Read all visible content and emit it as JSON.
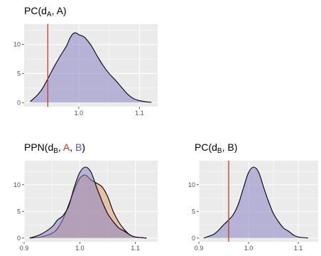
{
  "chart_data": [
    {
      "type": "area",
      "title": "PC(d_A, A)",
      "title_parts": {
        "prefix": "PC(d",
        "sub": "A",
        "rest": ", A)"
      },
      "xlim": [
        0.91,
        1.13
      ],
      "ylim": [
        -0.7,
        13.5
      ],
      "x_ticks": [
        {
          "value": 1.0,
          "label": "1.0"
        },
        {
          "value": 1.1,
          "label": "1.1"
        }
      ],
      "y_ticks": [
        {
          "value": 0,
          "label": "0"
        },
        {
          "value": 5,
          "label": "5"
        },
        {
          "value": 10,
          "label": "10"
        }
      ],
      "grid": true,
      "vline": {
        "x": 0.949,
        "color": "#c0392b"
      },
      "series": [
        {
          "color": "#8a84c4",
          "x": [
            0.92,
            0.93,
            0.94,
            0.95,
            0.96,
            0.97,
            0.98,
            0.985,
            0.99,
            0.995,
            1.0,
            1.005,
            1.01,
            1.02,
            1.03,
            1.04,
            1.05,
            1.06,
            1.07,
            1.08,
            1.09,
            1.1,
            1.11,
            1.12
          ],
          "y": [
            0.2,
            1.1,
            2.4,
            4.3,
            6.3,
            8.1,
            9.8,
            11.0,
            11.8,
            12.0,
            11.7,
            11.5,
            11.2,
            9.9,
            8.1,
            6.4,
            5.0,
            3.9,
            2.7,
            1.5,
            0.7,
            0.35,
            0.15,
            0.05
          ]
        }
      ]
    },
    {
      "type": "area",
      "title": "PPN(d_B, A, B)",
      "title_parts": {
        "prefix": "PPN(d",
        "sub": "B",
        "sep1": ", ",
        "labelA": "A",
        "sep2": ", ",
        "labelB": "B",
        "close": ")"
      },
      "label_colors": {
        "A": "#c0392b",
        "B": "#5b57a6"
      },
      "xlim": [
        0.9,
        1.14
      ],
      "ylim": [
        -0.7,
        14.5
      ],
      "x_ticks": [
        {
          "value": 0.9,
          "label": "0.9"
        },
        {
          "value": 1.0,
          "label": "1.0"
        },
        {
          "value": 1.1,
          "label": "1.1"
        }
      ],
      "y_ticks": [
        {
          "value": 0,
          "label": "0"
        },
        {
          "value": 5,
          "label": "5"
        },
        {
          "value": 10,
          "label": "10"
        }
      ],
      "grid": true,
      "series": [
        {
          "color": "#e0a070",
          "x": [
            0.91,
            0.93,
            0.95,
            0.96,
            0.97,
            0.98,
            0.99,
            1.0,
            1.01,
            1.02,
            1.03,
            1.04,
            1.05,
            1.06,
            1.07,
            1.08,
            1.09,
            1.1,
            1.12
          ],
          "y": [
            0.0,
            0.2,
            0.9,
            1.8,
            3.6,
            6.2,
            9.0,
            11.2,
            11.8,
            10.9,
            10.3,
            9.6,
            7.8,
            5.0,
            3.0,
            1.6,
            0.6,
            0.2,
            0.0
          ]
        },
        {
          "color": "#8a84c4",
          "x": [
            0.91,
            0.93,
            0.95,
            0.96,
            0.97,
            0.98,
            0.99,
            1.0,
            1.01,
            1.02,
            1.03,
            1.04,
            1.05,
            1.06,
            1.07,
            1.08,
            1.09,
            1.1,
            1.12
          ],
          "y": [
            0.0,
            0.7,
            2.1,
            3.4,
            4.2,
            6.0,
            9.5,
            12.3,
            13.3,
            12.4,
            9.6,
            6.9,
            4.6,
            3.1,
            1.9,
            1.3,
            0.6,
            0.2,
            0.0
          ]
        }
      ]
    },
    {
      "type": "area",
      "title": "PC(d_B, B)",
      "title_parts": {
        "prefix": "PC(d",
        "sub": "B",
        "rest": ", B)"
      },
      "xlim": [
        0.9,
        1.14
      ],
      "ylim": [
        -0.7,
        14.5
      ],
      "x_ticks": [
        {
          "value": 0.9,
          "label": "0.9"
        },
        {
          "value": 1.0,
          "label": "1.0"
        },
        {
          "value": 1.1,
          "label": "1.1"
        }
      ],
      "y_ticks": [
        {
          "value": 0,
          "label": "0"
        },
        {
          "value": 5,
          "label": "5"
        },
        {
          "value": 10,
          "label": "10"
        }
      ],
      "grid": true,
      "vline": {
        "x": 0.96,
        "color": "#c0392b"
      },
      "series": [
        {
          "color": "#8a84c4",
          "x": [
            0.91,
            0.93,
            0.94,
            0.95,
            0.96,
            0.97,
            0.98,
            0.99,
            1.0,
            1.01,
            1.02,
            1.03,
            1.04,
            1.05,
            1.06,
            1.07,
            1.08,
            1.09,
            1.1,
            1.12
          ],
          "y": [
            0.0,
            0.7,
            1.5,
            2.5,
            3.4,
            4.5,
            6.5,
            9.5,
            12.3,
            13.3,
            12.4,
            9.6,
            6.9,
            4.6,
            3.1,
            1.9,
            1.3,
            0.6,
            0.2,
            0.0
          ]
        }
      ]
    }
  ]
}
